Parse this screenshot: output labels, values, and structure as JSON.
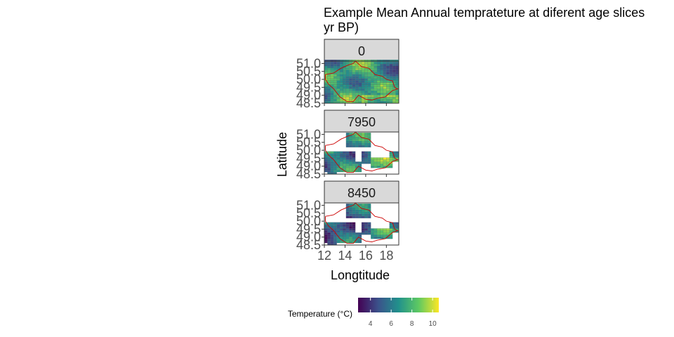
{
  "chart_data": {
    "type": "heatmap",
    "title_lines": [
      "Example Mean Annual temprateture at diferent age slices",
      "yr BP)"
    ],
    "xlabel": "Longtitude",
    "ylabel": "Latitude",
    "xlim": [
      12,
      19.2
    ],
    "ylim": [
      48.5,
      51.15
    ],
    "x_ticks": [
      "12",
      "14",
      "16",
      "18"
    ],
    "x_tick_values": [
      12,
      14,
      16,
      18
    ],
    "y_ticks": [
      "48.5",
      "49.0",
      "49.5",
      "50.0",
      "50.5",
      "51.0"
    ],
    "y_tick_values": [
      48.5,
      49.0,
      49.5,
      50.0,
      50.5,
      51.0
    ],
    "facets": [
      {
        "label": "0",
        "coverage": "full",
        "base_temperature": 7.5
      },
      {
        "label": "7950",
        "coverage": "partial",
        "base_temperature": 6.5
      },
      {
        "label": "8450",
        "coverage": "partial",
        "base_temperature": 5.5
      }
    ],
    "legend": {
      "title": "Temperature (°C)",
      "position": "bottom",
      "ticks": [
        "4",
        "6",
        "8",
        "10"
      ],
      "tick_values": [
        4,
        6,
        8,
        10
      ],
      "range": [
        2.8,
        10.6
      ]
    },
    "colors": {
      "palette": [
        "#440154",
        "#3b528b",
        "#21918c",
        "#5ec962",
        "#fde725"
      ],
      "boundary": "#cc0000",
      "strip_fill": "#d9d9d9"
    },
    "grid": false
  }
}
